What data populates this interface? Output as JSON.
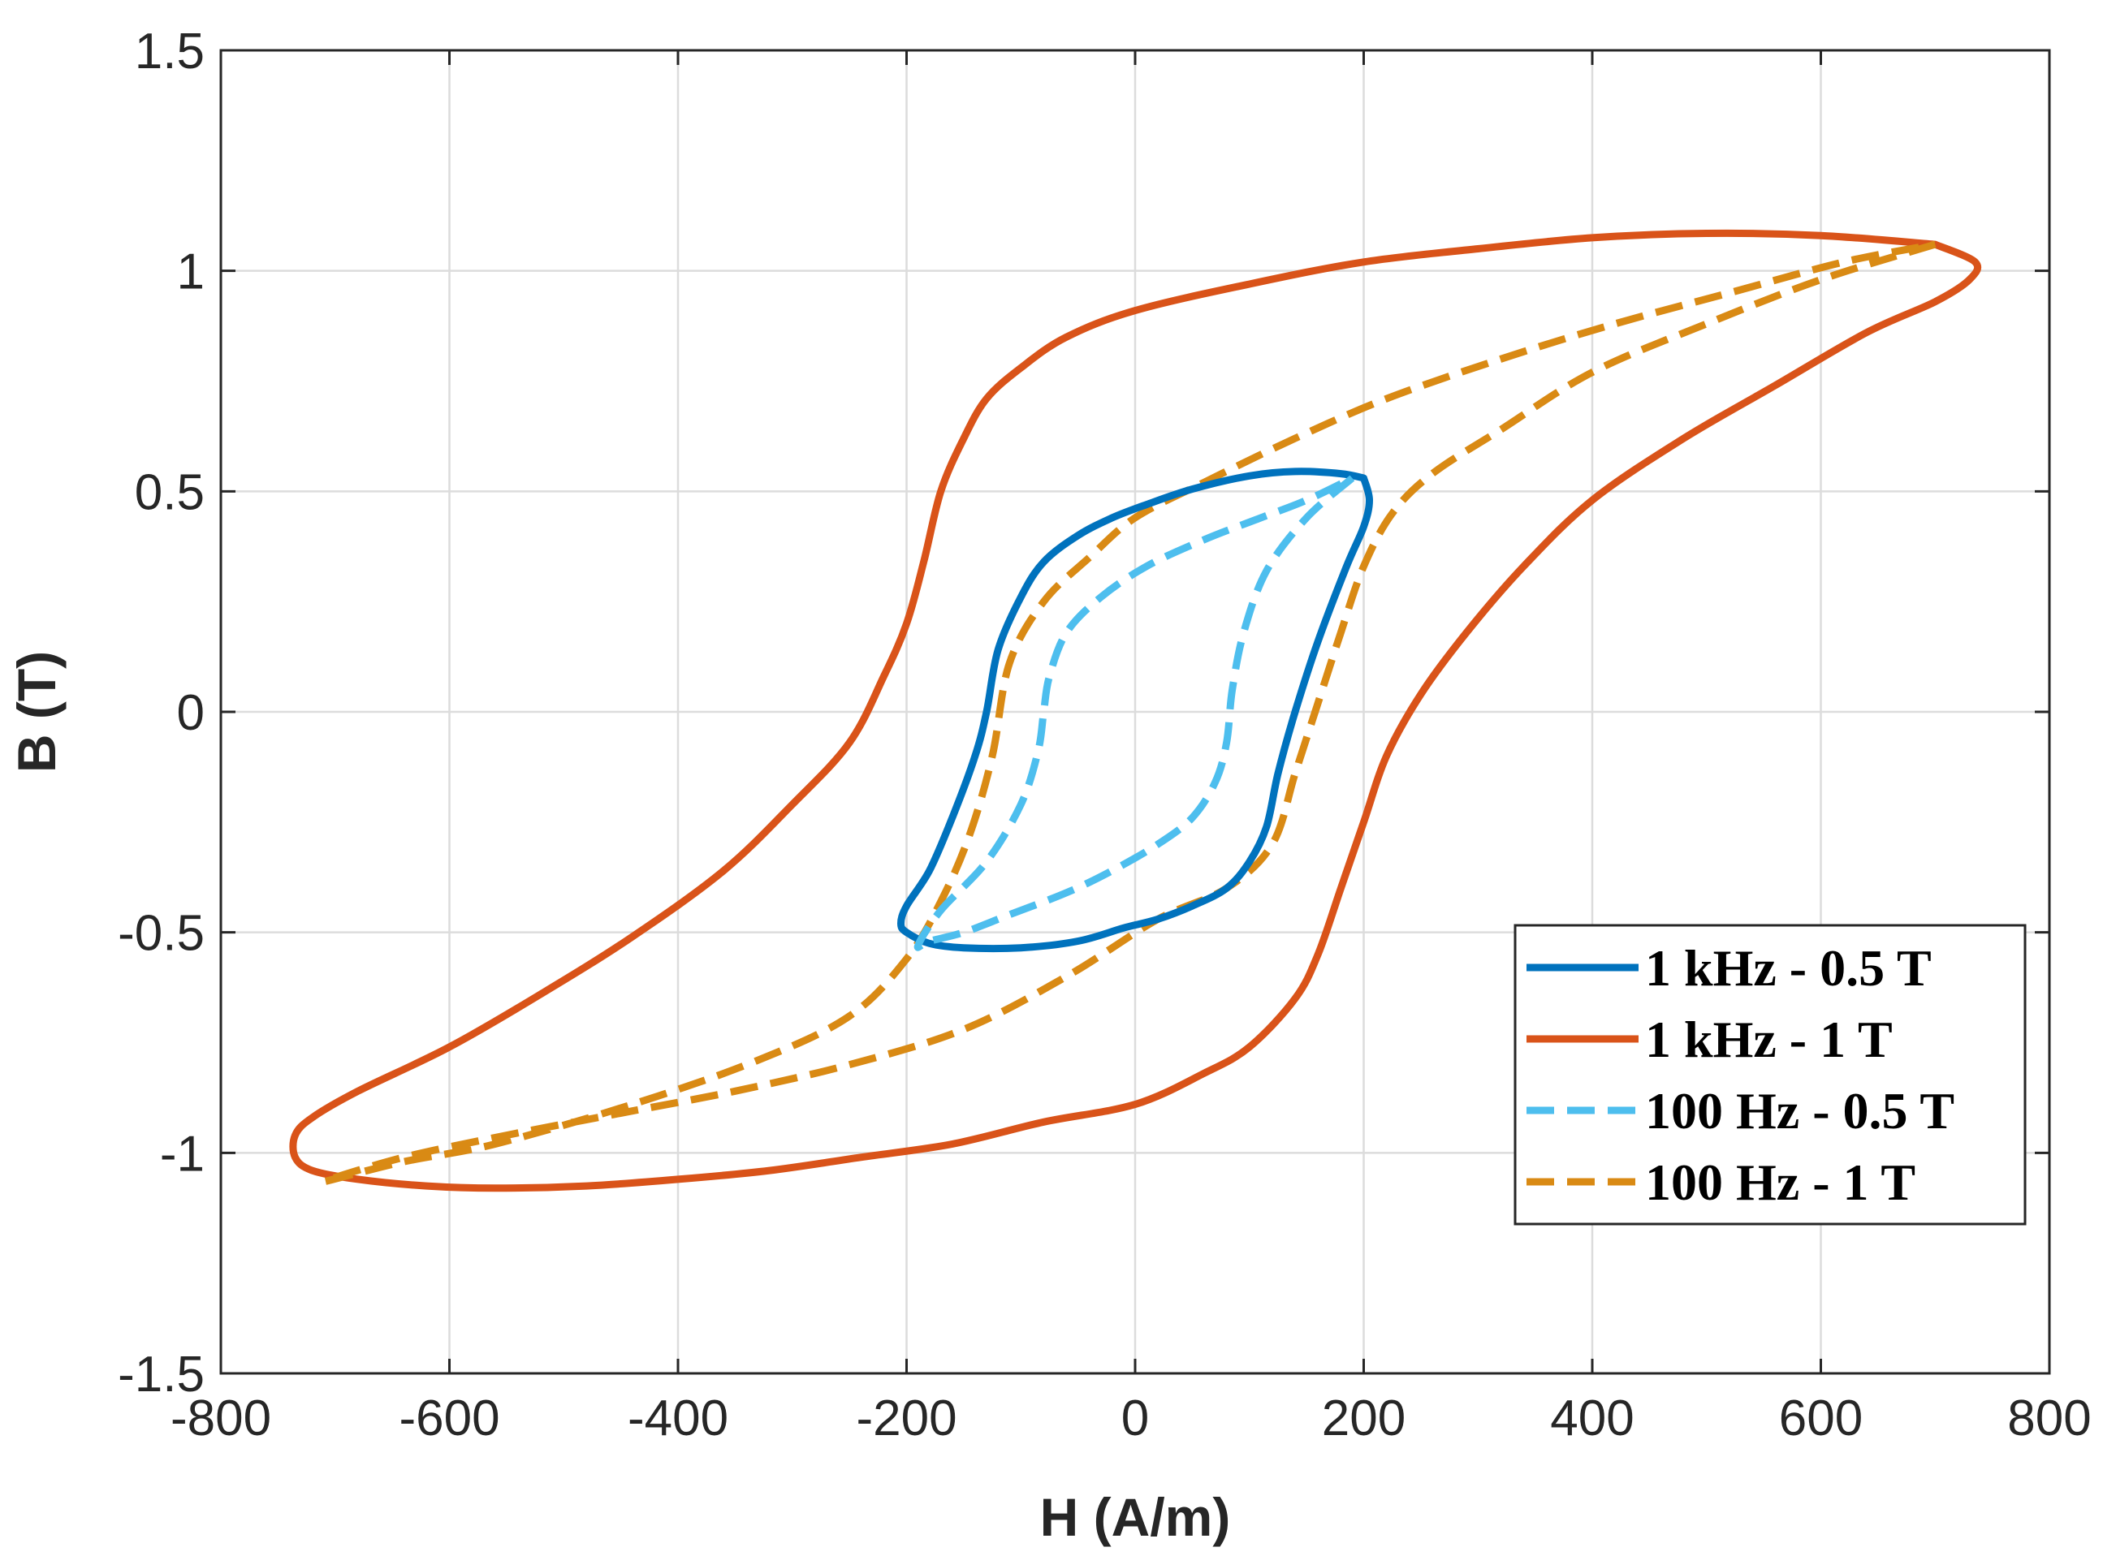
{
  "chart_data": {
    "type": "line",
    "title": "",
    "xlabel": "H (A/m)",
    "ylabel": "B (T)",
    "xlim": [
      -800,
      800
    ],
    "ylim": [
      -1.5,
      1.5
    ],
    "xticks": [
      -800,
      -600,
      -400,
      -200,
      0,
      200,
      400,
      600,
      800
    ],
    "xtick_labels": [
      "-800",
      "-600",
      "-400",
      "-200",
      "0",
      "200",
      "400",
      "600",
      "800"
    ],
    "yticks": [
      -1.5,
      -1,
      -0.5,
      0,
      0.5,
      1,
      1.5
    ],
    "ytick_labels": [
      "-1.5",
      "-1",
      "-0.5",
      "0",
      "0.5",
      "1",
      "1.5"
    ],
    "grid": true,
    "legend_position": "bottom-right",
    "series": [
      {
        "name": "1 kHz - 0.5 T",
        "color": "#0072BD",
        "style": "solid",
        "x": [
          200,
          205,
          200,
          185,
          160,
          140,
          125,
          115,
          100,
          80,
          50,
          20,
          -10,
          -50,
          -100,
          -150,
          -180,
          -200,
          -205,
          -200,
          -180,
          -160,
          -140,
          -130,
          -120,
          -100,
          -80,
          -50,
          -20,
          10,
          50,
          100,
          140,
          180,
          200
        ],
        "y": [
          0.53,
          0.48,
          0.42,
          0.33,
          0.16,
          0.0,
          -0.14,
          -0.26,
          -0.34,
          -0.4,
          -0.44,
          -0.47,
          -0.49,
          -0.52,
          -0.535,
          -0.535,
          -0.525,
          -0.5,
          -0.48,
          -0.44,
          -0.36,
          -0.24,
          -0.1,
          0.0,
          0.14,
          0.26,
          0.34,
          0.4,
          0.44,
          0.47,
          0.505,
          0.535,
          0.545,
          0.54,
          0.53
        ]
      },
      {
        "name": "1 kHz - 1 T",
        "color": "#D95319",
        "style": "solid",
        "x": [
          700,
          735,
          730,
          700,
          640,
          560,
          480,
          400,
          340,
          290,
          250,
          220,
          200,
          180,
          160,
          140,
          100,
          60,
          0,
          -80,
          -160,
          -240,
          -320,
          -400,
          -480,
          -560,
          -620,
          -680,
          -720,
          -735,
          -735,
          -720,
          -680,
          -600,
          -520,
          -440,
          -360,
          -300,
          -250,
          -220,
          -200,
          -185,
          -170,
          -150,
          -130,
          -100,
          -60,
          0,
          100,
          200,
          300,
          400,
          500,
          600,
          700
        ],
        "y": [
          1.06,
          1.02,
          0.98,
          0.93,
          0.86,
          0.74,
          0.62,
          0.48,
          0.33,
          0.18,
          0.04,
          -0.1,
          -0.25,
          -0.4,
          -0.55,
          -0.65,
          -0.76,
          -0.82,
          -0.89,
          -0.93,
          -0.98,
          -1.01,
          -1.04,
          -1.06,
          -1.075,
          -1.08,
          -1.075,
          -1.06,
          -1.04,
          -1.01,
          -0.96,
          -0.92,
          -0.86,
          -0.76,
          -0.64,
          -0.51,
          -0.36,
          -0.21,
          -0.07,
          0.08,
          0.2,
          0.34,
          0.5,
          0.62,
          0.71,
          0.78,
          0.85,
          0.91,
          0.97,
          1.02,
          1.05,
          1.075,
          1.085,
          1.08,
          1.06
        ]
      },
      {
        "name": "100 Hz - 0.5 T",
        "color": "#4DBEEE",
        "style": "dashed",
        "x": [
          190,
          150,
          115,
          95,
          85,
          80,
          70,
          50,
          20,
          -20,
          -60,
          -110,
          -150,
          -180,
          -190,
          -170,
          -130,
          -100,
          -85,
          -80,
          -75,
          -60,
          -30,
          10,
          60,
          110,
          150,
          190
        ],
        "y": [
          0.53,
          0.44,
          0.32,
          0.18,
          0.05,
          -0.07,
          -0.16,
          -0.24,
          -0.3,
          -0.36,
          -0.41,
          -0.46,
          -0.5,
          -0.52,
          -0.53,
          -0.45,
          -0.34,
          -0.21,
          -0.09,
          0.0,
          0.08,
          0.18,
          0.26,
          0.33,
          0.39,
          0.44,
          0.48,
          0.53
        ]
      },
      {
        "name": "100 Hz - 1 T",
        "color": "#D98A14",
        "style": "dashed",
        "x": [
          700,
          600,
          500,
          400,
          320,
          260,
          225,
          200,
          180,
          160,
          140,
          120,
          80,
          20,
          -60,
          -150,
          -250,
          -350,
          -450,
          -550,
          -640,
          -710,
          -640,
          -560,
          -440,
          -330,
          -250,
          -200,
          -170,
          -145,
          -125,
          -110,
          -80,
          -40,
          0,
          60,
          140,
          220,
          320,
          420,
          520,
          620,
          700
        ],
        "y": [
          1.06,
          0.98,
          0.88,
          0.77,
          0.64,
          0.54,
          0.45,
          0.33,
          0.18,
          0.02,
          -0.14,
          -0.3,
          -0.4,
          -0.47,
          -0.6,
          -0.72,
          -0.8,
          -0.86,
          -0.91,
          -0.96,
          -1.01,
          -1.065,
          -1.02,
          -0.98,
          -0.89,
          -0.79,
          -0.69,
          -0.56,
          -0.43,
          -0.28,
          -0.1,
          0.11,
          0.25,
          0.35,
          0.44,
          0.52,
          0.62,
          0.71,
          0.8,
          0.88,
          0.95,
          1.02,
          1.06
        ]
      }
    ]
  }
}
